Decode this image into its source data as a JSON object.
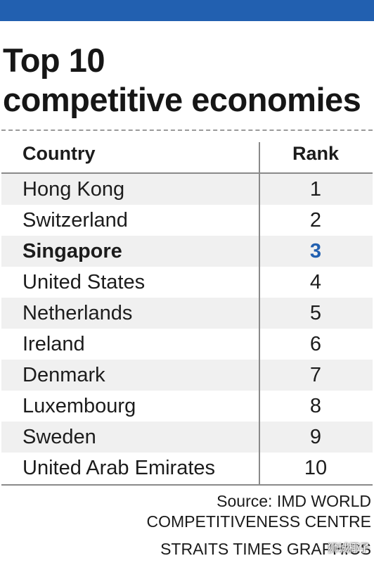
{
  "header": {
    "title_line1": "Top 10",
    "title_line2": "competitive economies"
  },
  "table": {
    "column_country": "Country",
    "column_rank": "Rank"
  },
  "footer": {
    "source": "Source: IMD WORLD COMPETITIVENESS CENTRE",
    "credit": "STRAITS TIMES GRAPHICS",
    "watermark": "狮城椰子"
  },
  "colors": {
    "accent": "#2260b0",
    "row_stripe": "#f0f0f0"
  },
  "chart_data": {
    "type": "table",
    "title": "Top 10 competitive economies",
    "columns": [
      "Country",
      "Rank"
    ],
    "rows": [
      {
        "country": "Hong Kong",
        "rank": 1
      },
      {
        "country": "Switzerland",
        "rank": 2
      },
      {
        "country": "Singapore",
        "rank": 3,
        "highlight": true
      },
      {
        "country": "United States",
        "rank": 4
      },
      {
        "country": "Netherlands",
        "rank": 5
      },
      {
        "country": "Ireland",
        "rank": 6
      },
      {
        "country": "Denmark",
        "rank": 7
      },
      {
        "country": "Luxembourg",
        "rank": 8
      },
      {
        "country": "Sweden",
        "rank": 9
      },
      {
        "country": "United Arab Emirates",
        "rank": 10
      }
    ]
  }
}
